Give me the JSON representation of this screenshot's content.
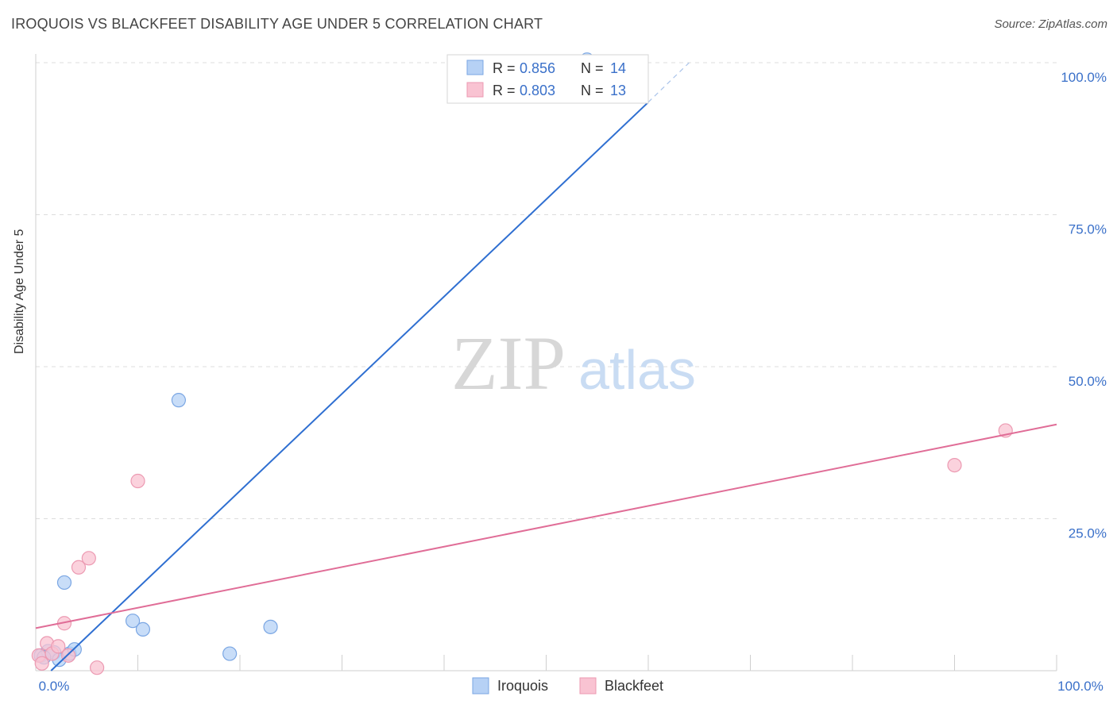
{
  "header": {
    "title": "IROQUOIS VS BLACKFEET DISABILITY AGE UNDER 5 CORRELATION CHART",
    "source": "Source: ZipAtlas.com"
  },
  "watermark": {
    "zip": "ZIP",
    "atlas": "atlas"
  },
  "colors": {
    "iroquois_fill": "#b6d1f5",
    "iroquois_stroke": "#7aa6e3",
    "iroquois_line": "#2f6fd1",
    "blackfeet_fill": "#f9c3d2",
    "blackfeet_stroke": "#ec9ab2",
    "blackfeet_line": "#e06d97",
    "value_text": "#3a70c9"
  },
  "legend_box": {
    "rows": [
      {
        "r_label": "R = ",
        "r_value": "0.856",
        "n_label": "N = ",
        "n_value": "14"
      },
      {
        "r_label": "R = ",
        "r_value": "0.803",
        "n_label": "N = ",
        "n_value": "13"
      }
    ]
  },
  "bottom_legend": {
    "iroquois": "Iroquois",
    "blackfeet": "Blackfeet"
  },
  "chart_data": {
    "type": "scatter",
    "title": "IROQUOIS VS BLACKFEET DISABILITY AGE UNDER 5 CORRELATION CHART",
    "xlabel": "",
    "ylabel": "Disability Age Under 5",
    "xlim": [
      0,
      100
    ],
    "ylim": [
      0,
      100
    ],
    "x_tick_labels": [
      "0.0%",
      "100.0%"
    ],
    "y_tick_values": [
      25,
      50,
      75,
      100
    ],
    "y_tick_labels": [
      "25.0%",
      "50.0%",
      "75.0%",
      "100.0%"
    ],
    "grid": true,
    "series": [
      {
        "name": "Iroquois",
        "r": 0.856,
        "n": 14,
        "points": [
          [
            0.5,
            2.5
          ],
          [
            1.2,
            3.2
          ],
          [
            1.8,
            3.0
          ],
          [
            2.3,
            1.8
          ],
          [
            2.8,
            14.5
          ],
          [
            3.3,
            2.8
          ],
          [
            3.8,
            3.5
          ],
          [
            9.5,
            8.2
          ],
          [
            10.5,
            6.8
          ],
          [
            14.0,
            44.5
          ],
          [
            19.0,
            2.8
          ],
          [
            23.0,
            7.2
          ],
          [
            54.0,
            100.5
          ],
          [
            0.8,
            2.2
          ]
        ],
        "trend": {
          "x0": 1.5,
          "y0": 0,
          "x1": 60,
          "y1": 93.5,
          "dashed_to_x": 64,
          "dashed_to_y": 100
        }
      },
      {
        "name": "Blackfeet",
        "r": 0.803,
        "n": 13,
        "points": [
          [
            0.3,
            2.5
          ],
          [
            0.6,
            1.2
          ],
          [
            1.1,
            4.5
          ],
          [
            1.6,
            2.8
          ],
          [
            2.2,
            4.0
          ],
          [
            2.8,
            7.8
          ],
          [
            3.2,
            2.5
          ],
          [
            4.2,
            17.0
          ],
          [
            5.2,
            18.5
          ],
          [
            6.0,
            0.5
          ],
          [
            10.0,
            31.2
          ],
          [
            90.0,
            33.8
          ],
          [
            95.0,
            39.5
          ]
        ],
        "trend": {
          "x0": 0,
          "y0": 7.0,
          "x1": 100,
          "y1": 40.5
        }
      }
    ]
  }
}
